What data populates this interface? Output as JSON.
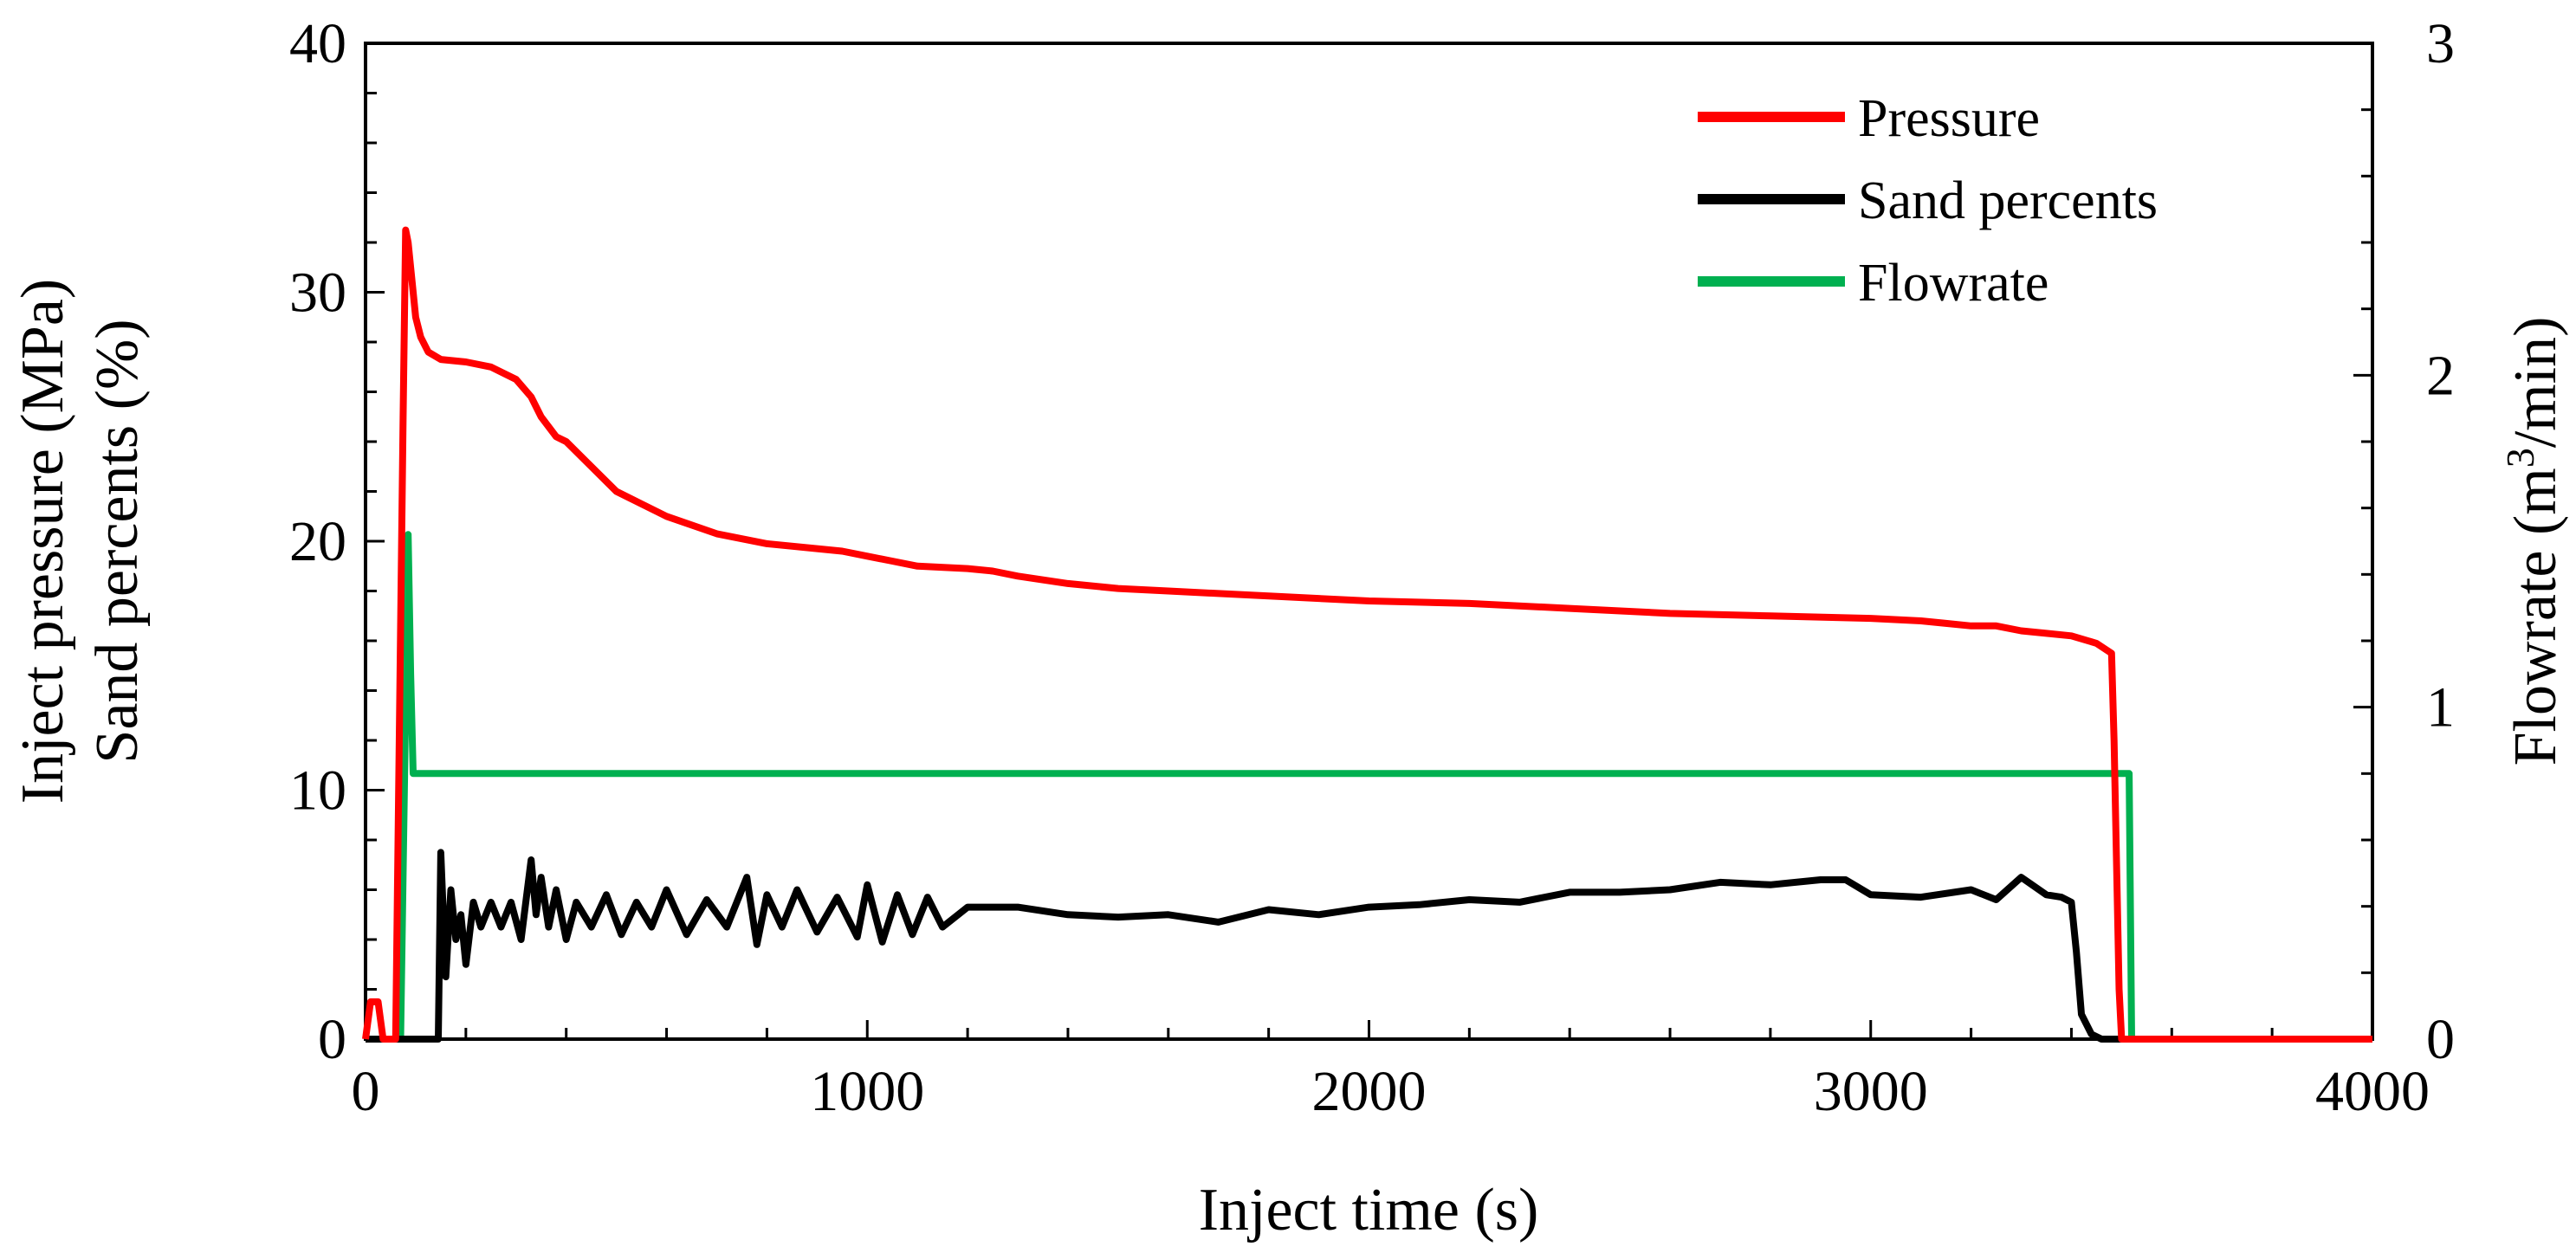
{
  "chart_data": {
    "type": "line",
    "title": "",
    "xlabel": "Inject time (s)",
    "ylabel_left_lines": [
      "Inject pressure (MPa)",
      "Sand percents (%)"
    ],
    "ylabel_right_prefix": "Flowrate (m",
    "ylabel_right_sup": "3",
    "ylabel_right_suffix": "/min)",
    "xlim": [
      0,
      4000
    ],
    "ylim_left": [
      0,
      40
    ],
    "ylim_right": [
      0,
      3
    ],
    "x_ticks": [
      "0",
      "1000",
      "2000",
      "3000",
      "4000"
    ],
    "y_left_ticks": [
      "0",
      "10",
      "20",
      "30",
      "40"
    ],
    "y_right_ticks": [
      "0",
      "1",
      "2",
      "3"
    ],
    "grid": false,
    "legend_position": "top-right",
    "series": [
      {
        "name": "Pressure",
        "color": "#ff0000",
        "axis": "left",
        "x": [
          0,
          10,
          15,
          20,
          25,
          35,
          60,
          75,
          80,
          85,
          90,
          100,
          110,
          125,
          150,
          200,
          250,
          300,
          330,
          350,
          380,
          400,
          450,
          500,
          550,
          600,
          700,
          800,
          900,
          950,
          1000,
          1050,
          1100,
          1200,
          1250,
          1300,
          1400,
          1500,
          1600,
          1700,
          1800,
          2000,
          2200,
          2400,
          2600,
          2800,
          3000,
          3100,
          3150,
          3200,
          3250,
          3300,
          3350,
          3400,
          3450,
          3480,
          3485,
          3490,
          3495,
          3500,
          3600,
          3800,
          4000
        ],
        "values": [
          0,
          1.5,
          1.5,
          1.5,
          1.5,
          0,
          0,
          25,
          32.5,
          32,
          31,
          29,
          28.2,
          27.6,
          27.3,
          27.2,
          27,
          26.5,
          25.8,
          25,
          24.2,
          24,
          23,
          22,
          21.5,
          21,
          20.3,
          19.9,
          19.7,
          19.6,
          19.4,
          19.2,
          19.0,
          18.9,
          18.8,
          18.6,
          18.3,
          18.1,
          18.0,
          17.9,
          17.8,
          17.6,
          17.5,
          17.3,
          17.1,
          17.0,
          16.9,
          16.8,
          16.7,
          16.6,
          16.6,
          16.4,
          16.3,
          16.2,
          15.9,
          15.5,
          12,
          7,
          2,
          0,
          0,
          0,
          0
        ]
      },
      {
        "name": "Sand percents",
        "color": "#000000",
        "axis": "left",
        "x": [
          0,
          145,
          150,
          160,
          170,
          180,
          190,
          200,
          215,
          230,
          250,
          270,
          290,
          310,
          330,
          340,
          350,
          365,
          380,
          400,
          420,
          450,
          480,
          510,
          540,
          570,
          600,
          640,
          680,
          720,
          760,
          780,
          800,
          830,
          860,
          900,
          940,
          980,
          1000,
          1030,
          1060,
          1090,
          1120,
          1150,
          1200,
          1300,
          1400,
          1500,
          1600,
          1700,
          1800,
          1900,
          2000,
          2100,
          2200,
          2300,
          2400,
          2500,
          2600,
          2700,
          2800,
          2900,
          2950,
          3000,
          3100,
          3200,
          3250,
          3300,
          3350,
          3380,
          3400,
          3410,
          3420,
          3440,
          3460,
          3500
        ],
        "values": [
          0,
          0,
          7.5,
          2.5,
          6,
          4,
          5,
          3,
          5.5,
          4.5,
          5.5,
          4.5,
          5.5,
          4,
          7.2,
          5,
          6.5,
          4.5,
          6,
          4,
          5.5,
          4.5,
          5.8,
          4.2,
          5.5,
          4.5,
          6,
          4.2,
          5.6,
          4.5,
          6.5,
          3.8,
          5.8,
          4.5,
          6,
          4.3,
          5.7,
          4.1,
          6.2,
          3.9,
          5.8,
          4.2,
          5.7,
          4.5,
          5.3,
          5.3,
          5.0,
          4.9,
          5.0,
          4.7,
          5.2,
          5.0,
          5.3,
          5.4,
          5.6,
          5.5,
          5.9,
          5.9,
          6.0,
          6.3,
          6.2,
          6.4,
          6.4,
          5.8,
          5.7,
          6.0,
          5.6,
          6.5,
          5.8,
          5.7,
          5.5,
          3.5,
          1.0,
          0.2,
          0,
          0
        ]
      },
      {
        "name": "Flowrate",
        "color": "#00b050",
        "axis": "right",
        "x": [
          0,
          70,
          75,
          80,
          85,
          90,
          95,
          100,
          3510,
          3515,
          3520,
          4000
        ],
        "values": [
          0,
          0,
          0.5,
          1.0,
          1.52,
          1.1,
          0.8,
          0.8,
          0.8,
          0.8,
          0,
          0
        ]
      }
    ]
  }
}
